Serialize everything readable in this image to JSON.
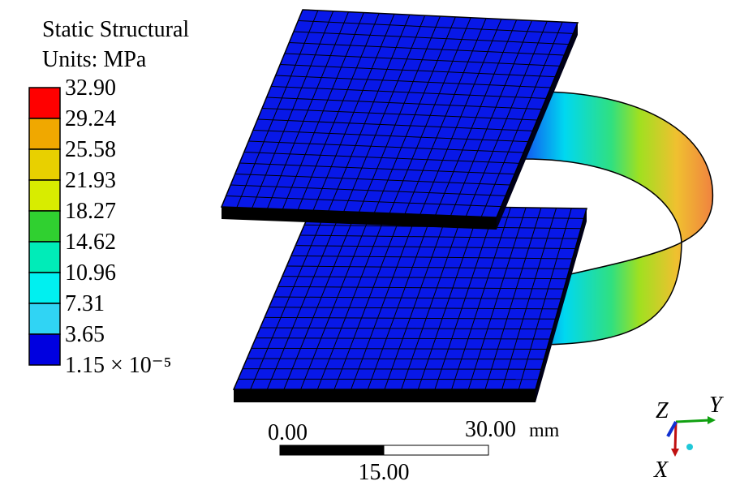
{
  "legend": {
    "title": "Static Structural",
    "units": "Units: MPa",
    "labels": [
      "32.90",
      "29.24",
      "25.58",
      "21.93",
      "18.27",
      "14.62",
      "10.96",
      "7.31",
      "3.65",
      "1.15 × 10⁻⁵"
    ],
    "colors": [
      "#ff0000",
      "#f0a800",
      "#e8d000",
      "#d8ec00",
      "#30d030",
      "#00ecb8",
      "#00f0f0",
      "#30d4f4",
      "#0000e0"
    ]
  },
  "scale_bar": {
    "start": "0.00",
    "end": "30.00",
    "unit": "mm",
    "middle": "15.00"
  },
  "triad": {
    "z": "Z",
    "y": "Y",
    "x": "X"
  }
}
